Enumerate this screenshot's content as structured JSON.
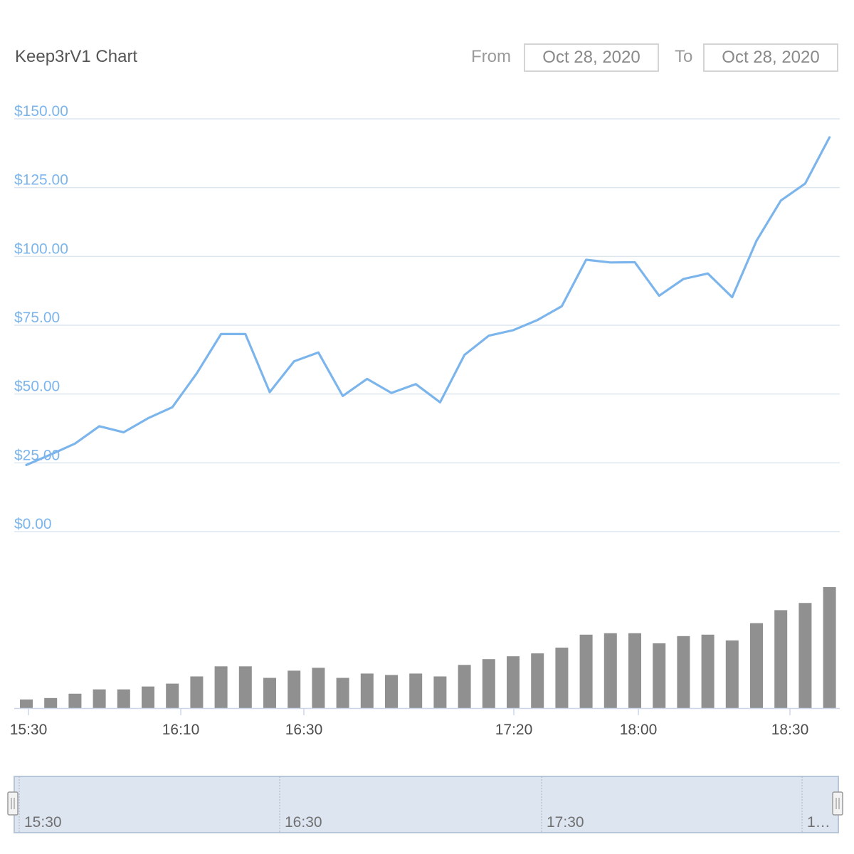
{
  "header": {
    "title": "Keep3rV1 Chart",
    "from_label": "From",
    "from_value": "Oct 28, 2020",
    "to_label": "To",
    "to_value": "Oct 28, 2020"
  },
  "navigator": {
    "labels": [
      "15:30",
      "16:30",
      "17:30",
      "1…"
    ]
  },
  "colors": {
    "price_line": "#7cb5ec",
    "volume_bar": "#909090",
    "navigator_fill": "#dde5f1"
  },
  "chart_data": [
    {
      "type": "line",
      "title": "Keep3rV1 Chart",
      "ylim": [
        0,
        150
      ],
      "yticks": [
        "$150.00",
        "$125.00",
        "$100.00",
        "$75.00",
        "$50.00",
        "$25.00",
        "$0.00"
      ],
      "xticks": [
        "15:30",
        "16:10",
        "16:30",
        "17:20",
        "18:00",
        "18:30"
      ],
      "grid": true,
      "series": [
        {
          "values": [
            24.2,
            28.0,
            32.0,
            38.3,
            36.1,
            41.2,
            45.2,
            57.5,
            71.8,
            71.8,
            50.7,
            61.9,
            65.1,
            49.3,
            55.5,
            50.4,
            53.6,
            47.0,
            64.2,
            71.2,
            73.2,
            76.9,
            81.9,
            98.8,
            97.8,
            97.9,
            85.7,
            91.8,
            93.8,
            85.2,
            105.7,
            120.3,
            126.5,
            143.3
          ]
        }
      ]
    },
    {
      "type": "bar",
      "series": [
        {
          "values": [
            6,
            7,
            10,
            13,
            13,
            15,
            17,
            22,
            29,
            29,
            21,
            26,
            28,
            21,
            24,
            23,
            24,
            22,
            30,
            34,
            36,
            38,
            42,
            51,
            52,
            52,
            45,
            50,
            51,
            47,
            59,
            68,
            73,
            84
          ]
        }
      ]
    }
  ]
}
